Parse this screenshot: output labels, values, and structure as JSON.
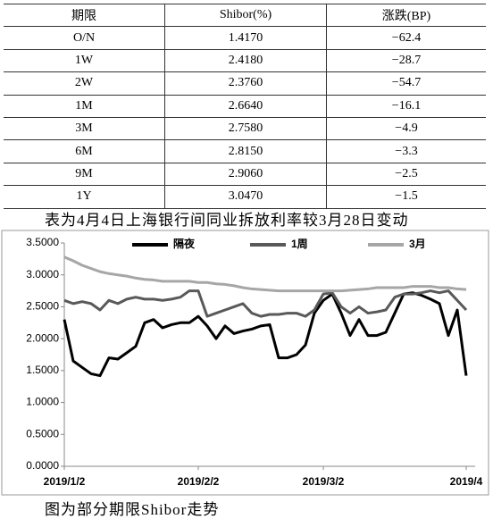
{
  "table": {
    "header": [
      "期限",
      "Shibor(%)",
      "涨跌(BP)"
    ],
    "rows": [
      [
        "O/N",
        "1.4170",
        "−62.4"
      ],
      [
        "1W",
        "2.4180",
        "−28.7"
      ],
      [
        "2W",
        "2.3760",
        "−54.7"
      ],
      [
        "1M",
        "2.6640",
        "−16.1"
      ],
      [
        "3M",
        "2.7580",
        "−4.9"
      ],
      [
        "6M",
        "2.8150",
        "−3.3"
      ],
      [
        "9M",
        "2.9060",
        "−2.5"
      ],
      [
        "1Y",
        "3.0470",
        "−1.5"
      ]
    ]
  },
  "table_caption": "表为4月4日上海银行间同业拆放利率较3月28日变动",
  "chart_data": {
    "type": "line",
    "categories": [
      "2019/1/2",
      null,
      null,
      null,
      null,
      null,
      null,
      null,
      null,
      null,
      null,
      null,
      null,
      null,
      null,
      "2019/2/2",
      null,
      null,
      null,
      null,
      null,
      null,
      null,
      null,
      null,
      null,
      null,
      null,
      null,
      "2019/3/2",
      null,
      null,
      null,
      null,
      null,
      null,
      null,
      null,
      null,
      null,
      null,
      null,
      null,
      null,
      null,
      "2019/4"
    ],
    "series": [
      {
        "name": "隔夜",
        "color": "#000000",
        "values": [
          2.3,
          1.65,
          1.55,
          1.45,
          1.42,
          1.7,
          1.68,
          1.78,
          1.88,
          2.25,
          2.3,
          2.17,
          2.22,
          2.25,
          2.25,
          2.35,
          2.2,
          2.0,
          2.2,
          2.08,
          2.12,
          2.15,
          2.2,
          2.22,
          1.7,
          1.7,
          1.75,
          1.9,
          2.4,
          2.6,
          2.7,
          2.4,
          2.05,
          2.3,
          2.05,
          2.05,
          2.1,
          2.4,
          2.7,
          2.72,
          2.68,
          2.62,
          2.55,
          2.05,
          2.45,
          1.42
        ]
      },
      {
        "name": "1周",
        "color": "#595959",
        "values": [
          2.6,
          2.55,
          2.58,
          2.55,
          2.45,
          2.6,
          2.55,
          2.62,
          2.65,
          2.62,
          2.62,
          2.6,
          2.62,
          2.65,
          2.75,
          2.75,
          2.35,
          2.4,
          2.45,
          2.5,
          2.55,
          2.4,
          2.35,
          2.38,
          2.38,
          2.4,
          2.4,
          2.35,
          2.45,
          2.7,
          2.72,
          2.5,
          2.4,
          2.5,
          2.4,
          2.42,
          2.45,
          2.65,
          2.7,
          2.7,
          2.72,
          2.75,
          2.72,
          2.75,
          2.6,
          2.45
        ]
      },
      {
        "name": "3月",
        "color": "#a6a6a6",
        "values": [
          3.28,
          3.22,
          3.15,
          3.1,
          3.05,
          3.02,
          3.0,
          2.98,
          2.95,
          2.93,
          2.92,
          2.9,
          2.9,
          2.9,
          2.9,
          2.88,
          2.88,
          2.86,
          2.85,
          2.83,
          2.8,
          2.78,
          2.77,
          2.76,
          2.75,
          2.75,
          2.75,
          2.75,
          2.75,
          2.75,
          2.75,
          2.75,
          2.76,
          2.77,
          2.78,
          2.8,
          2.8,
          2.8,
          2.8,
          2.82,
          2.82,
          2.82,
          2.8,
          2.8,
          2.78,
          2.77
        ]
      }
    ],
    "ylim": [
      0,
      3.5
    ],
    "yticks": [
      {
        "value": 0,
        "label": "0.0000"
      },
      {
        "value": 0.5,
        "label": "0.5000"
      },
      {
        "value": 1,
        "label": "1.0000"
      },
      {
        "value": 1.5,
        "label": "1.5000"
      },
      {
        "value": 2,
        "label": "2.0000"
      },
      {
        "value": 2.5,
        "label": "2.5000"
      },
      {
        "value": 3,
        "label": "3.0000"
      },
      {
        "value": 3.5,
        "label": "3.5000"
      }
    ],
    "legend": "top",
    "grid": false
  },
  "chart_caption": "图为部分期限Shibor走势"
}
